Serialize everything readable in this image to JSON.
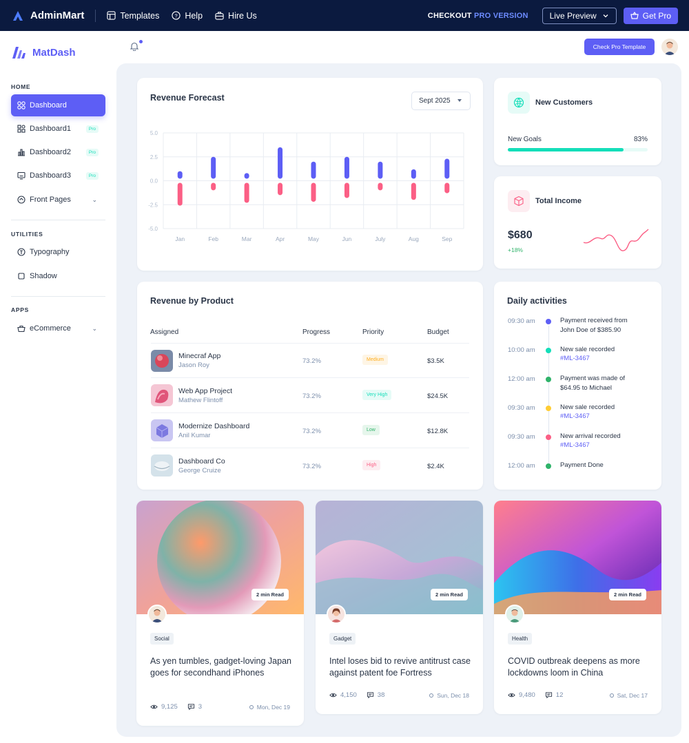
{
  "topbar": {
    "brand": "AdminMart",
    "nav": [
      {
        "label": "Templates",
        "icon": "layout-icon"
      },
      {
        "label": "Help",
        "icon": "help-icon"
      },
      {
        "label": "Hire Us",
        "icon": "briefcase-icon"
      }
    ],
    "checkout_prefix": "CHECKOUT",
    "checkout_pro": "PRO VERSION",
    "live_preview": "Live Preview",
    "get_pro": "Get Pro"
  },
  "sidebar": {
    "brand": "MatDash",
    "sections": {
      "home": "HOME",
      "utilities": "UTILITIES",
      "apps": "APPS"
    },
    "items": [
      {
        "label": "Dashboard",
        "icon": "dashboard-icon"
      },
      {
        "label": "Dashboard1",
        "icon": "shapes-icon",
        "badge": "Pro"
      },
      {
        "label": "Dashboard2",
        "icon": "chart-bar-icon",
        "badge": "Pro"
      },
      {
        "label": "Dashboard3",
        "icon": "monitor-icon",
        "badge": "Pro"
      },
      {
        "label": "Front Pages",
        "icon": "app-window-icon"
      },
      {
        "label": "Typography",
        "icon": "typography-icon"
      },
      {
        "label": "Shadow",
        "icon": "square-icon"
      },
      {
        "label": "eCommerce",
        "icon": "basket-icon"
      }
    ]
  },
  "header": {
    "check_pro": "Check Pro Template"
  },
  "revenue_forecast": {
    "title": "Revenue Forecast",
    "period": "Sept 2025"
  },
  "chart_data": {
    "type": "bar",
    "title": "Revenue Forecast",
    "categories": [
      "Jan",
      "Feb",
      "Mar",
      "Apr",
      "May",
      "Jun",
      "July",
      "Aug",
      "Sep"
    ],
    "ytick_labels": [
      "5.0",
      "2.5",
      "0.0",
      "-2.5",
      "-5.0"
    ],
    "ylim": [
      -5,
      5
    ],
    "grid": true,
    "series": [
      {
        "color": "#5d5ef5",
        "values": [
          1.0,
          2.5,
          0.8,
          3.5,
          2.0,
          2.5,
          2.0,
          1.2,
          2.3
        ]
      },
      {
        "color": "#fb5f85",
        "values": [
          -2.6,
          -1.0,
          -2.3,
          -1.5,
          -2.2,
          -1.8,
          -1.0,
          -2.0,
          -1.3
        ]
      }
    ],
    "colors": {
      "positive": "#5d5ef5",
      "negative": "#fb5f85"
    }
  },
  "new_customers": {
    "title": "New Customers",
    "goal_label": "New Goals",
    "goal_value": "83%",
    "goal_fraction": 0.83,
    "color": "#13deb9"
  },
  "total_income": {
    "title": "Total Income",
    "amount": "$680",
    "change": "+18%",
    "color": "#fb5f85"
  },
  "revenue_by_product": {
    "title": "Revenue by Product",
    "headers": [
      "Assigned",
      "Progress",
      "Priority",
      "Budget"
    ],
    "rows": [
      {
        "name": "Minecraf App",
        "person": "Jason Roy",
        "progress": "73.2%",
        "priority": "Medium",
        "budget": "$3.5K",
        "badge_bg": "#fef5e5",
        "badge_fg": "#ffae1f"
      },
      {
        "name": "Web App Project",
        "person": "Mathew Flintoff",
        "progress": "73.2%",
        "priority": "Very High",
        "budget": "$24.5K",
        "badge_bg": "#e6fbf7",
        "badge_fg": "#13deb9"
      },
      {
        "name": "Modernize Dashboard",
        "person": "Anil Kumar",
        "progress": "73.2%",
        "priority": "Low",
        "budget": "$12.8K",
        "badge_bg": "#e6f6ec",
        "badge_fg": "#2fb36a"
      },
      {
        "name": "Dashboard Co",
        "person": "George Cruize",
        "progress": "73.2%",
        "priority": "High",
        "budget": "$2.4K",
        "badge_bg": "#fdedf1",
        "badge_fg": "#fb5f85"
      }
    ]
  },
  "daily_activities": {
    "title": "Daily activities",
    "items": [
      {
        "time": "09:30 am",
        "text": "Payment received from John Doe of $385.90",
        "link": "",
        "color": "#5d5ef5"
      },
      {
        "time": "10:00 am",
        "text": "New sale recorded",
        "link": "#ML-3467",
        "color": "#13deb9"
      },
      {
        "time": "12:00 am",
        "text": "Payment was made of $64.95 to Michael",
        "link": "",
        "color": "#2fb36a"
      },
      {
        "time": "09:30 am",
        "text": "New sale recorded",
        "link": "#ML-3467",
        "color": "#ffcc33"
      },
      {
        "time": "09:30 am",
        "text": "New arrival recorded",
        "link": "#ML-3467",
        "color": "#fb5f85"
      },
      {
        "time": "12:00 am",
        "text": "Payment Done",
        "link": "",
        "color": "#2fb36a"
      }
    ]
  },
  "blogs": [
    {
      "read": "2 min Read",
      "tag": "Social",
      "title": "As yen tumbles, gadget-loving Japan goes for secondhand iPhones",
      "views": "9,125",
      "comments": "3",
      "date": "Mon, Dec 19"
    },
    {
      "read": "2 min Read",
      "tag": "Gadget",
      "title": "Intel loses bid to revive antitrust case against patent foe Fortress",
      "views": "4,150",
      "comments": "38",
      "date": "Sun, Dec 18"
    },
    {
      "read": "2 min Read",
      "tag": "Health",
      "title": "COVID outbreak deepens as more lockdowns loom in China",
      "views": "9,480",
      "comments": "12",
      "date": "Sat, Dec 17"
    }
  ]
}
